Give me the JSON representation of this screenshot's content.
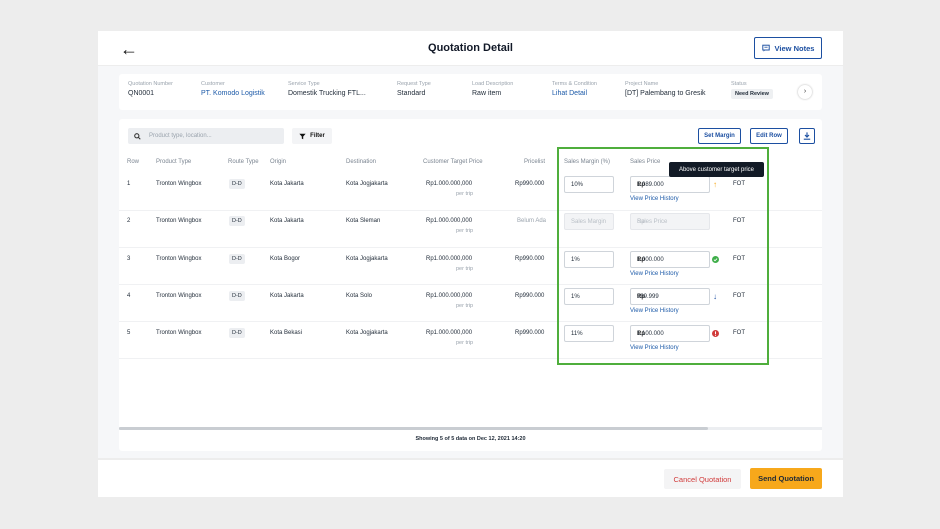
{
  "header": {
    "title": "Quotation Detail",
    "view_notes": "View Notes"
  },
  "info": {
    "quotation_number": {
      "label": "Quotation Number",
      "value": "QN0001"
    },
    "customer": {
      "label": "Customer",
      "value": "PT. Komodo Logistik"
    },
    "service_type": {
      "label": "Service Type",
      "value": "Domestik Trucking FTL..."
    },
    "request_type": {
      "label": "Request Type",
      "value": "Standard"
    },
    "load_description": {
      "label": "Load Description",
      "value": "Raw item"
    },
    "terms": {
      "label": "Terms & Condition",
      "value": "Lihat Detail"
    },
    "project_name": {
      "label": "Project Name",
      "value": "[DT] Palembang to Gresik"
    },
    "status": {
      "label": "Status",
      "value": "Need Review"
    }
  },
  "toolbar": {
    "search_placeholder": "Product type, location...",
    "filter": "Filter",
    "set_margin": "Set Margin",
    "edit_row": "Edit Row"
  },
  "columns": {
    "row": "Row",
    "product_type": "Product Type",
    "route_type": "Route Type",
    "origin": "Origin",
    "destination": "Destination",
    "customer_target_price": "Customer Target Price",
    "pricelist": "Pricelist",
    "sales_margin": "Sales Margin (%)",
    "sales_price": "Sales Price"
  },
  "rows": [
    {
      "row": "1",
      "product": "Tronton Wingbox",
      "route": "D-D",
      "origin": "Kota Jakarta",
      "destination": "Kota Jogjakarta",
      "target": "Rp1.000.000,000",
      "per": "per trip",
      "pricelist": "Rp990.000",
      "margin": "10%",
      "price_prefix": "Rp",
      "price": "1.089.000",
      "history": "View Price History",
      "status_icon": "arrow-up-icon",
      "term": "FOT"
    },
    {
      "row": "2",
      "product": "Tronton Wingbox",
      "route": "D-D",
      "origin": "Kota Jakarta",
      "destination": "Kota Sleman",
      "target": "Rp1.000.000,000",
      "per": "per trip",
      "pricelist": "Belum Ada",
      "margin_placeholder": "Sales Margin",
      "price_prefix": "Rp",
      "price_placeholder": "Sales Price",
      "term": "FOT"
    },
    {
      "row": "3",
      "product": "Tronton Wingbox",
      "route": "D-D",
      "origin": "Kota Bogor",
      "destination": "Kota Jogjakarta",
      "target": "Rp1.000.000,000",
      "per": "per trip",
      "pricelist": "Rp990.000",
      "margin": "1%",
      "price_prefix": "Rp",
      "price": "1.000.000",
      "history": "View Price History",
      "status_icon": "check-circle-icon",
      "term": "FOT"
    },
    {
      "row": "4",
      "product": "Tronton Wingbox",
      "route": "D-D",
      "origin": "Kota Jakarta",
      "destination": "Kota Solo",
      "target": "Rp1.000.000,000",
      "per": "per trip",
      "pricelist": "Rp990.000",
      "margin": "1%",
      "price_prefix": "Rp",
      "price": "999.999",
      "history": "View Price History",
      "status_icon": "arrow-down-icon",
      "term": "FOT"
    },
    {
      "row": "5",
      "product": "Tronton Wingbox",
      "route": "D-D",
      "origin": "Kota Bekasi",
      "destination": "Kota Jogjakarta",
      "target": "Rp1.000.000,000",
      "per": "per trip",
      "pricelist": "Rp990.000",
      "margin": "11%",
      "price_prefix": "Rp",
      "price": "1.100.000",
      "history": "View Price History",
      "status_icon": "error-circle-icon",
      "term": "FOT"
    }
  ],
  "tooltip": "Above customer target price",
  "footer": {
    "showing": "Showing 5 of 5 data on Dec 12, 2021 14:20"
  },
  "actions": {
    "cancel": "Cancel Quotation",
    "send": "Send Quotation"
  },
  "colors": {
    "primary": "#1c4fa1",
    "accent": "#f7a81b",
    "highlight": "#4fae3c",
    "danger": "#d13b3b"
  }
}
